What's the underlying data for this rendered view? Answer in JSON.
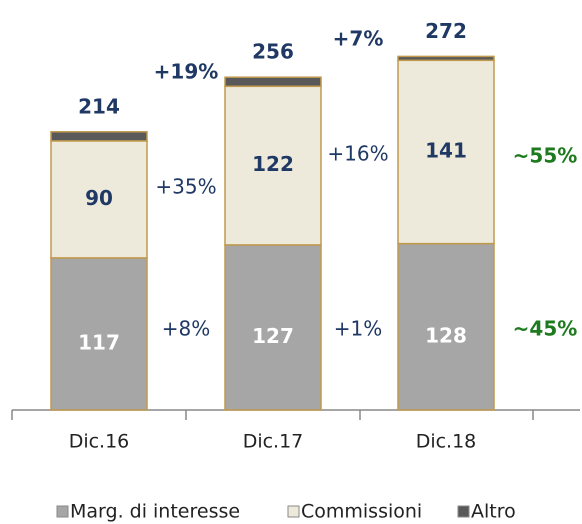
{
  "chart_data": {
    "type": "bar",
    "stacked": true,
    "categories": [
      "Dic.16",
      "Dic.17",
      "Dic.18"
    ],
    "series": [
      {
        "name": "Marg. di interesse",
        "color": "#a6a6a6",
        "values": [
          117,
          127,
          128
        ]
      },
      {
        "name": "Commissioni",
        "color": "#eeeadb",
        "values": [
          90,
          122,
          141
        ]
      },
      {
        "name": "Altro",
        "color": "#595959",
        "values": [
          7,
          7,
          3
        ]
      }
    ],
    "totals": [
      214,
      256,
      272
    ],
    "annotations": [
      "+8%",
      "+35%",
      "+19%",
      "+1%",
      "+16%",
      "+7%",
      "~55%",
      "~45%"
    ]
  }
}
